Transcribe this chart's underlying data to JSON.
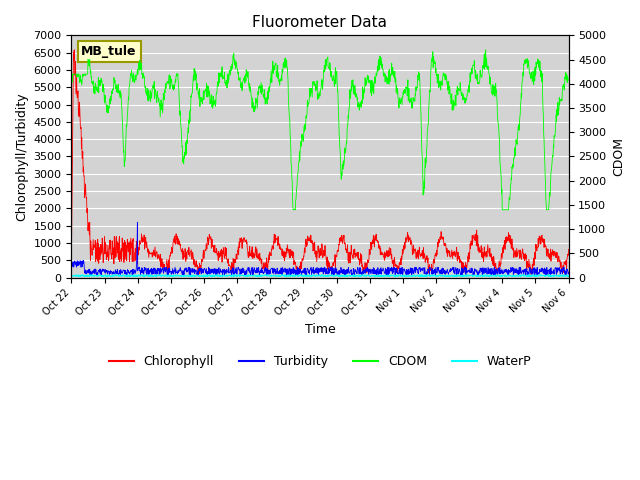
{
  "title": "Fluorometer Data",
  "xlabel": "Time",
  "ylabel_left": "Chlorophyll/Turbidity",
  "ylabel_right": "CDOM",
  "ylim_left": [
    0,
    7000
  ],
  "ylim_right": [
    0,
    5000
  ],
  "yticks_left": [
    0,
    500,
    1000,
    1500,
    2000,
    2500,
    3000,
    3500,
    4000,
    4500,
    5000,
    5500,
    6000,
    6500,
    7000
  ],
  "yticks_right": [
    0,
    500,
    1000,
    1500,
    2000,
    2500,
    3000,
    3500,
    4000,
    4500,
    5000
  ],
  "xtick_labels": [
    "Oct 22",
    "Oct 23",
    "Oct 24",
    "Oct 25",
    "Oct 26",
    "Oct 27",
    "Oct 28",
    "Oct 29",
    "Oct 30",
    "Oct 31",
    "Nov 1",
    "Nov 2",
    "Nov 3",
    "Nov 4",
    "Nov 5",
    "Nov 6"
  ],
  "station_label": "MB_tule",
  "colors": {
    "chlorophyll": "#ff0000",
    "turbidity": "#0000ff",
    "cdom": "#00ff00",
    "waterp": "#00ffff",
    "background": "#d3d3d3",
    "grid": "#ffffff"
  },
  "legend_labels": [
    "Chlorophyll",
    "Turbidity",
    "CDOM",
    "WaterP"
  ]
}
